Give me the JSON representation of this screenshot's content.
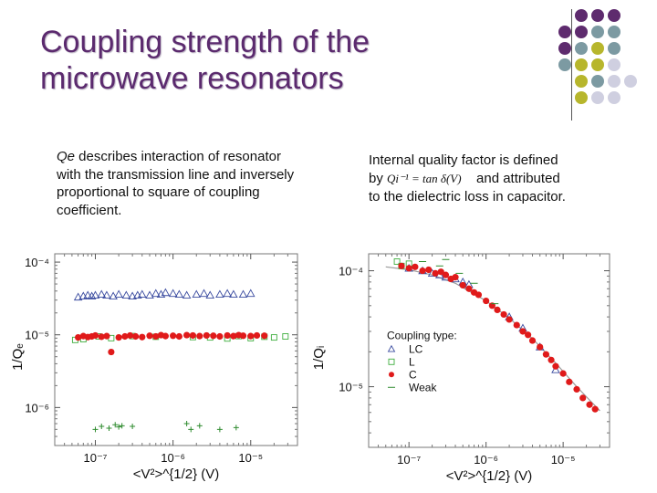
{
  "title": {
    "line1": "Coupling strength of the",
    "line2": "microwave resonators"
  },
  "left_text": {
    "term": "Qe",
    "rest": " describes interaction of resonator with the transmission line and inversely proportional to square of coupling coefficient."
  },
  "right_text": {
    "line1": "Internal quality factor  is defined",
    "by": "by",
    "formula": "Qi⁻¹ = tan δ(V)",
    "line2_rest": "and attributed",
    "line3": "to the dielectric loss in capacitor."
  },
  "colors": {
    "title": "#5b2a6e",
    "purple": "#5e2b6e",
    "teal": "#7c9aa2",
    "olive": "#b7b62c",
    "lavender": "#cfcfe0",
    "lc": "#3b4ca0",
    "l": "#3fae3f",
    "c": "#e01a1a",
    "weak": "#2e8b2e"
  },
  "dot_grid": [
    [
      "purple",
      "purple",
      "purple"
    ],
    [
      "purple",
      "purple",
      "teal",
      "teal"
    ],
    [
      "purple",
      "teal",
      "olive",
      "teal"
    ],
    [
      "teal",
      "olive",
      "olive",
      "lavender"
    ],
    [
      "olive",
      "teal",
      "lavender",
      "lavender"
    ],
    [
      "olive",
      "lavender",
      "lavender"
    ]
  ],
  "chart_data": [
    {
      "type": "scatter",
      "title": "",
      "xlabel": "<V²>^{1/2} (V)",
      "ylabel": "1/Qₑ",
      "xscale": "log",
      "yscale": "log",
      "xlim": [
        3e-08,
        4e-05
      ],
      "ylim": [
        3e-07,
        0.00013
      ],
      "x_ticks": [
        {
          "value": 1e-07,
          "label": "10⁻⁷"
        },
        {
          "value": 1e-06,
          "label": "10⁻⁶"
        },
        {
          "value": 1e-05,
          "label": "10⁻⁵"
        }
      ],
      "y_ticks": [
        {
          "value": 0.0001,
          "label": "10⁻⁴"
        },
        {
          "value": 1e-05,
          "label": "10⁻⁵"
        },
        {
          "value": 1e-06,
          "label": "10⁻⁶"
        }
      ],
      "series": [
        {
          "name": "LC",
          "marker": "triangle",
          "color": "#3b4ca0",
          "x": [
            6e-08,
            7e-08,
            8e-08,
            9e-08,
            1e-07,
            1.2e-07,
            1.4e-07,
            1.7e-07,
            2e-07,
            2.5e-07,
            3e-07,
            3.5e-07,
            4e-07,
            5e-07,
            6e-07,
            7e-07,
            8e-07,
            1e-06,
            1.2e-06,
            1.5e-06,
            2e-06,
            2.5e-06,
            3e-06,
            4e-06,
            5e-06,
            6e-06,
            8e-06,
            1e-05
          ],
          "y": [
            3.3e-05,
            3.4e-05,
            3.5e-05,
            3.4e-05,
            3.5e-05,
            3.6e-05,
            3.5e-05,
            3.4e-05,
            3.6e-05,
            3.5e-05,
            3.4e-05,
            3.5e-05,
            3.6e-05,
            3.5e-05,
            3.7e-05,
            3.6e-05,
            3.8e-05,
            3.7e-05,
            3.6e-05,
            3.5e-05,
            3.6e-05,
            3.7e-05,
            3.5e-05,
            3.6e-05,
            3.7e-05,
            3.6e-05,
            3.6e-05,
            3.7e-05
          ]
        },
        {
          "name": "L",
          "marker": "square",
          "color": "#3fae3f",
          "x": [
            5.5e-08,
            7e-08,
            1.1e-07,
            1.6e-07,
            3e-07,
            6e-07,
            1.8e-06,
            3e-06,
            5e-06,
            7e-06,
            1e-05,
            1.5e-05,
            2e-05,
            2.8e-05
          ],
          "y": [
            8.5e-06,
            8.7e-06,
            9.5e-06,
            9e-06,
            9.6e-06,
            9.4e-06,
            9.3e-06,
            9.2e-06,
            8.9e-06,
            9.6e-06,
            9e-06,
            9.4e-06,
            9.2e-06,
            9.5e-06
          ]
        },
        {
          "name": "C",
          "marker": "circle",
          "color": "#e01a1a",
          "x": [
            6e-08,
            7e-08,
            8e-08,
            9e-08,
            1e-07,
            1.2e-07,
            1.4e-07,
            1.6e-07,
            2e-07,
            2.4e-07,
            2.8e-07,
            3.3e-07,
            4e-07,
            5e-07,
            6e-07,
            7e-07,
            8e-07,
            1e-06,
            1.2e-06,
            1.5e-06,
            1.8e-06,
            2.2e-06,
            2.7e-06,
            3.3e-06,
            4e-06,
            5e-06,
            6e-06,
            7e-06,
            8e-06,
            1e-05,
            1.2e-05,
            1.5e-05
          ],
          "y": [
            9.2e-06,
            9.6e-06,
            9.3e-06,
            9.5e-06,
            9.8e-06,
            9.4e-06,
            9.6e-06,
            5.8e-06,
            9.2e-06,
            9.5e-06,
            9.8e-06,
            9.5e-06,
            9.3e-06,
            9.7e-06,
            9.5e-06,
            9.9e-06,
            9.6e-06,
            9.7e-06,
            9.5e-06,
            9.9e-06,
            9.8e-06,
            9.6e-06,
            9.8e-06,
            9.7e-06,
            9.5e-06,
            9.8e-06,
            9.6e-06,
            9.9e-06,
            9.7e-06,
            9.6e-06,
            9.8e-06,
            9.7e-06
          ]
        },
        {
          "name": "Weak",
          "marker": "plus",
          "color": "#2e8b2e",
          "x": [
            1e-07,
            1.2e-07,
            1.5e-07,
            1.8e-07,
            2e-07,
            2.2e-07,
            3e-07,
            1.5e-06,
            1.7e-06,
            2.2e-06,
            4e-06,
            6.5e-06
          ],
          "y": [
            5e-07,
            5.5e-07,
            5.2e-07,
            5.8e-07,
            5.4e-07,
            5.6e-07,
            5.5e-07,
            6e-07,
            5e-07,
            5.6e-07,
            5e-07,
            5.3e-07
          ]
        }
      ]
    },
    {
      "type": "scatter",
      "title": "",
      "xlabel": "<V²>^{1/2} (V)",
      "ylabel": "1/Qᵢ",
      "xscale": "log",
      "yscale": "log",
      "xlim": [
        3e-08,
        4e-05
      ],
      "ylim": [
        3e-06,
        0.00014
      ],
      "x_ticks": [
        {
          "value": 1e-07,
          "label": "10⁻⁷"
        },
        {
          "value": 1e-06,
          "label": "10⁻⁶"
        },
        {
          "value": 1e-05,
          "label": "10⁻⁵"
        }
      ],
      "y_ticks": [
        {
          "value": 0.0001,
          "label": "10⁻⁴"
        },
        {
          "value": 1e-05,
          "label": "10⁻⁵"
        }
      ],
      "legend": {
        "title": "Coupling type:",
        "entries": [
          "LC",
          "L",
          "C",
          "Weak"
        ],
        "placement": "left-middle"
      },
      "fit_line": {
        "x": [
          5e-08,
          1e-07,
          2e-07,
          4e-07,
          7e-07,
          1e-06,
          2e-06,
          4e-06,
          8e-06,
          1.5e-05,
          3e-05
        ],
        "y": [
          0.000108,
          0.000102,
          9.2e-05,
          7.8e-05,
          6.3e-05,
          5.5e-05,
          3.9e-05,
          2.6e-05,
          1.6e-05,
          1e-05,
          6.2e-06
        ]
      },
      "series": [
        {
          "name": "LC",
          "marker": "triangle",
          "color": "#3b4ca0",
          "x": [
            1e-07,
            1.5e-07,
            2e-07,
            2.5e-07,
            3e-07,
            4e-07,
            5e-07,
            6e-07,
            2e-06,
            3e-06,
            5e-06,
            8e-06
          ],
          "y": [
            0.000105,
            0.0001,
            9.5e-05,
            9.2e-05,
            8.8e-05,
            8.5e-05,
            8e-05,
            7.6e-05,
            4e-05,
            3.2e-05,
            2.2e-05,
            1.4e-05
          ]
        },
        {
          "name": "L",
          "marker": "square",
          "color": "#3fae3f",
          "x": [
            7e-08,
            8e-08,
            1e-07
          ],
          "y": [
            0.00012,
            0.00011,
            0.000115
          ]
        },
        {
          "name": "C",
          "marker": "circle",
          "color": "#e01a1a",
          "x": [
            8e-08,
            1e-07,
            1.2e-07,
            1.5e-07,
            1.8e-07,
            2.2e-07,
            2.6e-07,
            3e-07,
            3.5e-07,
            4e-07,
            5e-07,
            6e-07,
            7e-07,
            8e-07,
            1e-06,
            1.2e-06,
            1.4e-06,
            1.7e-06,
            2e-06,
            2.5e-06,
            3e-06,
            3.5e-06,
            4e-06,
            5e-06,
            6e-06,
            7e-06,
            8e-06,
            1e-05,
            1.2e-05,
            1.5e-05,
            1.8e-05,
            2.2e-05,
            2.6e-05
          ],
          "y": [
            0.00011,
            0.000105,
            0.000108,
            0.0001,
            0.000102,
            9.5e-05,
            9.8e-05,
            9.2e-05,
            8.5e-05,
            8.8e-05,
            7.5e-05,
            7e-05,
            6.5e-05,
            6.2e-05,
            5.5e-05,
            5e-05,
            4.6e-05,
            4.2e-05,
            3.8e-05,
            3.4e-05,
            3e-05,
            2.8e-05,
            2.5e-05,
            2.2e-05,
            1.9e-05,
            1.7e-05,
            1.5e-05,
            1.3e-05,
            1.1e-05,
            9.5e-06,
            8e-06,
            7e-06,
            6.4e-06
          ]
        },
        {
          "name": "Weak",
          "marker": "minus",
          "color": "#2e8b2e",
          "x": [
            1.5e-07,
            2.5e-07,
            3e-07,
            4.5e-07,
            7e-07,
            1.3e-06
          ],
          "y": [
            0.00012,
            0.00011,
            0.000125,
            9.5e-05,
            7.8e-05,
            5.2e-05
          ]
        }
      ]
    }
  ]
}
